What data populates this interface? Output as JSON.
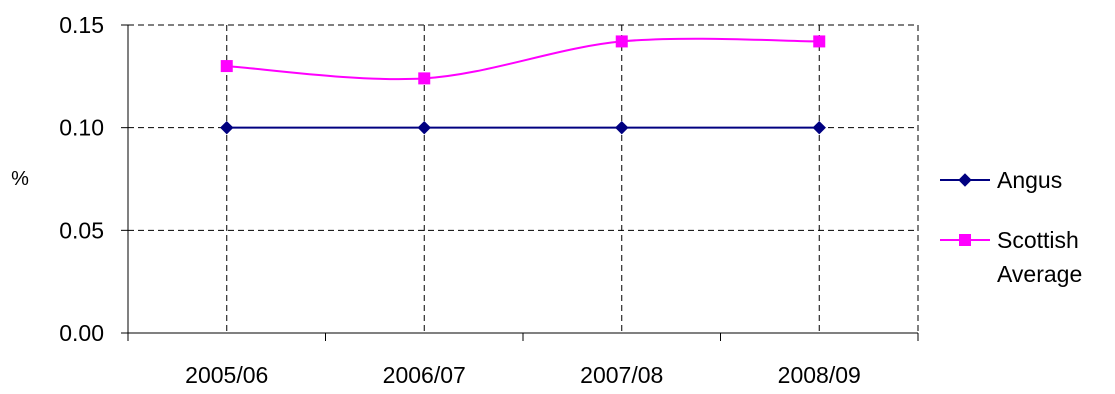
{
  "chart_data": {
    "type": "line",
    "title": "",
    "xlabel": "",
    "ylabel": "%",
    "categories": [
      "2005/06",
      "2006/07",
      "2007/08",
      "2008/09"
    ],
    "ylim": [
      0,
      0.15
    ],
    "yticks": [
      "0.00",
      "0.05",
      "0.10",
      "0.15"
    ],
    "grid": true,
    "smooth": true,
    "legend": {
      "position": "right",
      "entries": [
        {
          "label_lines": [
            "Angus"
          ]
        },
        {
          "label_lines": [
            "Scottish",
            "Average"
          ]
        }
      ]
    },
    "series": [
      {
        "name": "Angus",
        "values": [
          0.1,
          0.1,
          0.1,
          0.1
        ],
        "color": "#000080",
        "marker": "diamond"
      },
      {
        "name": "Scottish Average",
        "values": [
          0.13,
          0.124,
          0.142,
          0.142
        ],
        "color": "#FF00FF",
        "marker": "square"
      }
    ]
  }
}
